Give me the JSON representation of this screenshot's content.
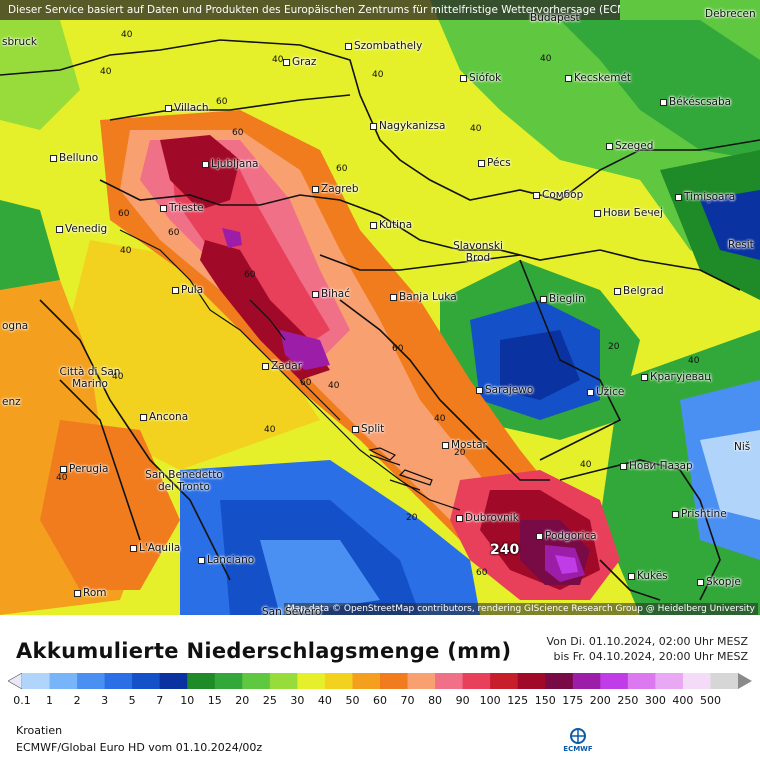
{
  "header": {
    "attribution": "Dieser Service basiert auf Daten und Produkten des Europäischen Zentrums für mittelfristige Wettervorhersage (ECMWF)",
    "map_credit": "Map data © OpenStreetMap contributors, rendering GIScience Research Group @ Heidelberg University"
  },
  "cities": [
    {
      "name": "sbruck"
    },
    {
      "name": "Graz"
    },
    {
      "name": "Szombathely"
    },
    {
      "name": "Budapest"
    },
    {
      "name": "Debrecen"
    },
    {
      "name": "Siófok"
    },
    {
      "name": "Kecskemét"
    },
    {
      "name": "Villach"
    },
    {
      "name": "Nagykanizsa"
    },
    {
      "name": "Békéscsaba"
    },
    {
      "name": "Belluno"
    },
    {
      "name": "Ljubljana"
    },
    {
      "name": "Szeged"
    },
    {
      "name": "Pécs"
    },
    {
      "name": "Zagreb"
    },
    {
      "name": "Trieste"
    },
    {
      "name": "Сомбор"
    },
    {
      "name": "Нови Бечеј"
    },
    {
      "name": "Timișoara"
    },
    {
      "name": "Venedig"
    },
    {
      "name": "Kutina"
    },
    {
      "name": "Slavonski Brod"
    },
    {
      "name": "Resit"
    },
    {
      "name": "Pula"
    },
    {
      "name": "Bihać"
    },
    {
      "name": "Banja Luka"
    },
    {
      "name": "Bieglin"
    },
    {
      "name": "Belgrad"
    },
    {
      "name": "ogna"
    },
    {
      "name": "Zadar"
    },
    {
      "name": "Città di San Marino"
    },
    {
      "name": "Sarajewo"
    },
    {
      "name": "Крагујевац"
    },
    {
      "name": "enz"
    },
    {
      "name": "Užice"
    },
    {
      "name": "Ancona"
    },
    {
      "name": "Split"
    },
    {
      "name": "Mostar"
    },
    {
      "name": "Niš"
    },
    {
      "name": "Perugia"
    },
    {
      "name": "San Benedetto del Tronto"
    },
    {
      "name": "Нови Пазар"
    },
    {
      "name": "Dubrovnik"
    },
    {
      "name": "Prishtine"
    },
    {
      "name": "Podgorica"
    },
    {
      "name": "L'Aquila"
    },
    {
      "name": "Lanciano"
    },
    {
      "name": "Kukës"
    },
    {
      "name": "Skopje"
    },
    {
      "name": "Rom"
    },
    {
      "name": "San Severo"
    }
  ],
  "contour_labels": [
    "40",
    "40",
    "40",
    "40",
    "40",
    "40",
    "60",
    "60",
    "60",
    "60",
    "60",
    "60",
    "60",
    "60",
    "40",
    "40",
    "40",
    "40",
    "20",
    "20",
    "20",
    "60",
    "40",
    "40",
    "40",
    "40",
    "20",
    "20",
    "20",
    "40",
    "60",
    "40",
    "20",
    "20"
  ],
  "max_value": "240",
  "legend": {
    "title": "Akkumulierte Niederschlagsmenge (mm)",
    "period_from": "Von Di. 01.10.2024, 02:00 Uhr MESZ",
    "period_to": "bis Fr. 04.10.2024, 20:00 Uhr MESZ",
    "ticks": [
      "0.1",
      "1",
      "2",
      "3",
      "5",
      "7",
      "10",
      "15",
      "20",
      "25",
      "30",
      "40",
      "50",
      "60",
      "70",
      "80",
      "90",
      "100",
      "125",
      "150",
      "175",
      "200",
      "250",
      "300",
      "400",
      "500"
    ],
    "colors": [
      "#e8e8f8",
      "#b0d4fa",
      "#78b4f8",
      "#4a8ff2",
      "#2a6fe6",
      "#1450c8",
      "#0a32a0",
      "#1e8a28",
      "#33a83a",
      "#60c840",
      "#98dc3c",
      "#e6f02a",
      "#f2d21e",
      "#f4a01e",
      "#f07c1e",
      "#f8a070",
      "#f07088",
      "#e8405a",
      "#c81e2c",
      "#a00a28",
      "#780a46",
      "#9c1ea8",
      "#c03ce6",
      "#dc78f0",
      "#e8a8f4",
      "#f4dcf8",
      "#d6d6d6",
      "#8a8a8a"
    ],
    "region": "Kroatien",
    "model": "ECMWF/Global Euro HD vom 01.10.2024/00z",
    "logo_text": "ECMWF"
  }
}
